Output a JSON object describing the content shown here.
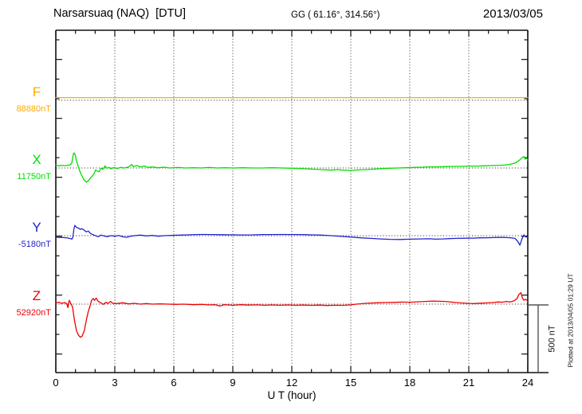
{
  "header": {
    "title": "Narsarsuaq (NAQ)  [DTU]",
    "geo_coords": "GG ( 61.16°, 314.56°)",
    "date": "2013/03/05"
  },
  "axis": {
    "x_label": "U T (hour)",
    "x_ticks": [
      "0",
      "3",
      "6",
      "9",
      "12",
      "15",
      "18",
      "21",
      "24"
    ],
    "x_tick_hours": [
      0,
      3,
      6,
      9,
      12,
      15,
      18,
      21,
      24
    ],
    "grid_hours": [
      3,
      6,
      9,
      12,
      15,
      18,
      21
    ],
    "x_range_hours": [
      0,
      24
    ]
  },
  "scalebar": {
    "label": "500 nT",
    "nT": 500
  },
  "watermark": {
    "plotted_at": "Plotted at 2013/04/05 01:29 UT"
  },
  "channels": [
    {
      "id": "F",
      "label": "F",
      "value_label": "88880nT",
      "baseline_nT": 88880,
      "color": "#FFAA00"
    },
    {
      "id": "X",
      "label": "X",
      "value_label": "11750nT",
      "baseline_nT": 11750,
      "color": "#00DD00"
    },
    {
      "id": "Y",
      "label": "Y",
      "value_label": "-5180nT",
      "baseline_nT": -5180,
      "color": "#2222CC"
    },
    {
      "id": "Z",
      "label": "Z",
      "value_label": "52920nT",
      "baseline_nT": 52920,
      "color": "#EE0000"
    }
  ],
  "chart_data": {
    "type": "line",
    "title": "Narsarsuaq (NAQ) [DTU] magnetogram, 2013/03/05",
    "xlabel": "U T (hour)",
    "x_unit": "hour",
    "xlim": [
      0,
      24
    ],
    "x_tick_step": 3,
    "grid": "dotted vertical lines every 3 h; dotted horizontal baseline per channel",
    "legend_position": "left baseline labels",
    "scale_bar_nT": 500,
    "series": [
      {
        "name": "F",
        "baseline_nT": 88880,
        "color": "#FFAA00",
        "offsets_nT": [
          [
            0,
            20
          ],
          [
            24,
            20
          ]
        ]
      },
      {
        "name": "X",
        "baseline_nT": 11750,
        "color": "#00DD00",
        "offsets_nT": [
          [
            0,
            22
          ],
          [
            0.15,
            16
          ],
          [
            0.3,
            20
          ],
          [
            0.45,
            17
          ],
          [
            0.6,
            20
          ],
          [
            0.75,
            24
          ],
          [
            0.82,
            40
          ],
          [
            0.88,
            95
          ],
          [
            0.92,
            112
          ],
          [
            0.98,
            100
          ],
          [
            1.05,
            55
          ],
          [
            1.12,
            20
          ],
          [
            1.2,
            -15
          ],
          [
            1.3,
            -50
          ],
          [
            1.42,
            -85
          ],
          [
            1.55,
            -105
          ],
          [
            1.65,
            -95
          ],
          [
            1.75,
            -75
          ],
          [
            1.85,
            -60
          ],
          [
            1.95,
            -40
          ],
          [
            2.02,
            -15
          ],
          [
            2.1,
            -22
          ],
          [
            2.2,
            -28
          ],
          [
            2.3,
            -2
          ],
          [
            2.4,
            -10
          ],
          [
            2.5,
            15
          ],
          [
            2.6,
            -2
          ],
          [
            2.7,
            4
          ],
          [
            2.8,
            -6
          ],
          [
            2.95,
            4
          ],
          [
            3.1,
            -4
          ],
          [
            3.3,
            4
          ],
          [
            3.5,
            0
          ],
          [
            3.7,
            8
          ],
          [
            3.85,
            26
          ],
          [
            3.95,
            10
          ],
          [
            4.1,
            18
          ],
          [
            4.3,
            8
          ],
          [
            4.5,
            14
          ],
          [
            4.7,
            4
          ],
          [
            4.9,
            8
          ],
          [
            5.2,
            2
          ],
          [
            5.5,
            6
          ],
          [
            5.8,
            0
          ],
          [
            6.2,
            4
          ],
          [
            6.6,
            0
          ],
          [
            7,
            2
          ],
          [
            7.4,
            0
          ],
          [
            7.8,
            4
          ],
          [
            8.2,
            0
          ],
          [
            8.6,
            2
          ],
          [
            9,
            0
          ],
          [
            9.5,
            2
          ],
          [
            10,
            0
          ],
          [
            10.5,
            0
          ],
          [
            11,
            2
          ],
          [
            11.5,
            0
          ],
          [
            12,
            -2
          ],
          [
            12.5,
            -4
          ],
          [
            13,
            -8
          ],
          [
            13.5,
            -12
          ],
          [
            14,
            -16
          ],
          [
            14.3,
            -12
          ],
          [
            14.6,
            -16
          ],
          [
            15,
            -18
          ],
          [
            15.4,
            -14
          ],
          [
            15.8,
            -12
          ],
          [
            16.2,
            -8
          ],
          [
            16.6,
            -4
          ],
          [
            17,
            -2
          ],
          [
            17.4,
            0
          ],
          [
            17.8,
            2
          ],
          [
            18.2,
            4
          ],
          [
            18.6,
            6
          ],
          [
            19,
            8
          ],
          [
            19.4,
            8
          ],
          [
            19.8,
            10
          ],
          [
            20.2,
            12
          ],
          [
            20.6,
            12
          ],
          [
            21,
            14
          ],
          [
            21.4,
            14
          ],
          [
            21.8,
            16
          ],
          [
            22.2,
            18
          ],
          [
            22.6,
            20
          ],
          [
            23,
            24
          ],
          [
            23.2,
            30
          ],
          [
            23.4,
            40
          ],
          [
            23.55,
            55
          ],
          [
            23.7,
            75
          ],
          [
            23.8,
            85
          ],
          [
            23.87,
            65
          ],
          [
            23.93,
            75
          ],
          [
            24,
            58
          ]
        ]
      },
      {
        "name": "Y",
        "baseline_nT": -5180,
        "color": "#2222CC",
        "offsets_nT": [
          [
            0,
            -12
          ],
          [
            0.2,
            -13
          ],
          [
            0.4,
            -14
          ],
          [
            0.6,
            -17
          ],
          [
            0.75,
            -22
          ],
          [
            0.82,
            -26
          ],
          [
            0.87,
            -10
          ],
          [
            0.92,
            50
          ],
          [
            0.97,
            76
          ],
          [
            1.05,
            62
          ],
          [
            1.15,
            56
          ],
          [
            1.25,
            46
          ],
          [
            1.32,
            52
          ],
          [
            1.45,
            40
          ],
          [
            1.55,
            28
          ],
          [
            1.65,
            34
          ],
          [
            1.75,
            18
          ],
          [
            1.85,
            10
          ],
          [
            1.95,
            4
          ],
          [
            2.05,
            -2
          ],
          [
            2.15,
            -8
          ],
          [
            2.3,
            4
          ],
          [
            2.45,
            -2
          ],
          [
            2.6,
            -8
          ],
          [
            2.8,
            0
          ],
          [
            3,
            -4
          ],
          [
            3.2,
            2
          ],
          [
            3.4,
            -8
          ],
          [
            3.6,
            -12
          ],
          [
            3.8,
            -4
          ],
          [
            4,
            0
          ],
          [
            4.3,
            4
          ],
          [
            4.6,
            -2
          ],
          [
            4.9,
            2
          ],
          [
            5.2,
            -4
          ],
          [
            5.5,
            0
          ],
          [
            5.9,
            2
          ],
          [
            6.3,
            4
          ],
          [
            6.7,
            6
          ],
          [
            7.1,
            8
          ],
          [
            7.5,
            9
          ],
          [
            8,
            8
          ],
          [
            8.5,
            7
          ],
          [
            9,
            6
          ],
          [
            9.5,
            5
          ],
          [
            10,
            6
          ],
          [
            10.5,
            8
          ],
          [
            11,
            8
          ],
          [
            11.5,
            9
          ],
          [
            12,
            8
          ],
          [
            12.5,
            8
          ],
          [
            13,
            6
          ],
          [
            13.5,
            4
          ],
          [
            14,
            0
          ],
          [
            14.5,
            -5
          ],
          [
            15,
            -10
          ],
          [
            15.5,
            -16
          ],
          [
            16,
            -20
          ],
          [
            16.5,
            -24
          ],
          [
            17,
            -27
          ],
          [
            17.5,
            -28
          ],
          [
            18,
            -26
          ],
          [
            18.5,
            -24
          ],
          [
            19,
            -23
          ],
          [
            19.3,
            -26
          ],
          [
            19.7,
            -24
          ],
          [
            20,
            -22
          ],
          [
            20.4,
            -20
          ],
          [
            20.8,
            -19
          ],
          [
            21.2,
            -18
          ],
          [
            21.6,
            -16
          ],
          [
            22,
            -15
          ],
          [
            22.4,
            -13
          ],
          [
            22.8,
            -13
          ],
          [
            23.1,
            -15
          ],
          [
            23.35,
            -20
          ],
          [
            23.5,
            -45
          ],
          [
            23.6,
            -70
          ],
          [
            23.7,
            -25
          ],
          [
            23.8,
            6
          ],
          [
            23.9,
            -10
          ],
          [
            24,
            -8
          ]
        ]
      },
      {
        "name": "Z",
        "baseline_nT": 52920,
        "color": "#EE0000",
        "offsets_nT": [
          [
            0,
            8
          ],
          [
            0.15,
            14
          ],
          [
            0.3,
            6
          ],
          [
            0.45,
            12
          ],
          [
            0.55,
            4
          ],
          [
            0.62,
            -26
          ],
          [
            0.68,
            28
          ],
          [
            0.75,
            8
          ],
          [
            0.85,
            -20
          ],
          [
            0.95,
            -120
          ],
          [
            1.05,
            -195
          ],
          [
            1.15,
            -230
          ],
          [
            1.25,
            -245
          ],
          [
            1.33,
            -238
          ],
          [
            1.45,
            -195
          ],
          [
            1.55,
            -120
          ],
          [
            1.65,
            -55
          ],
          [
            1.75,
            -8
          ],
          [
            1.82,
            28
          ],
          [
            1.9,
            42
          ],
          [
            1.97,
            28
          ],
          [
            2.05,
            45
          ],
          [
            2.15,
            22
          ],
          [
            2.3,
            8
          ],
          [
            2.42,
            -2
          ],
          [
            2.55,
            14
          ],
          [
            2.65,
            4
          ],
          [
            2.78,
            20
          ],
          [
            2.9,
            6
          ],
          [
            3.1,
            4
          ],
          [
            3.4,
            10
          ],
          [
            3.7,
            2
          ],
          [
            4,
            6
          ],
          [
            4.3,
            0
          ],
          [
            4.6,
            4
          ],
          [
            4.9,
            0
          ],
          [
            5.3,
            2
          ],
          [
            5.7,
            0
          ],
          [
            6.1,
            -2
          ],
          [
            6.5,
            0
          ],
          [
            7,
            -4
          ],
          [
            7.4,
            -2
          ],
          [
            7.8,
            -6
          ],
          [
            8.1,
            -4
          ],
          [
            8.35,
            -14
          ],
          [
            8.55,
            -4
          ],
          [
            9,
            -8
          ],
          [
            9.4,
            -4
          ],
          [
            9.8,
            -7
          ],
          [
            10.2,
            -5
          ],
          [
            10.6,
            -8
          ],
          [
            11,
            -6
          ],
          [
            11.4,
            -8
          ],
          [
            11.8,
            -6
          ],
          [
            12.2,
            -8
          ],
          [
            12.6,
            -7
          ],
          [
            13,
            -9
          ],
          [
            13.4,
            -7
          ],
          [
            13.8,
            -10
          ],
          [
            14.2,
            -8
          ],
          [
            14.6,
            -9
          ],
          [
            15,
            -5
          ],
          [
            15.3,
            0
          ],
          [
            15.7,
            5
          ],
          [
            16,
            8
          ],
          [
            16.4,
            10
          ],
          [
            16.8,
            12
          ],
          [
            17.2,
            13
          ],
          [
            17.6,
            15
          ],
          [
            18,
            14
          ],
          [
            18.4,
            17
          ],
          [
            18.8,
            20
          ],
          [
            19.2,
            23
          ],
          [
            19.5,
            21
          ],
          [
            19.8,
            20
          ],
          [
            20.1,
            15
          ],
          [
            20.4,
            11
          ],
          [
            20.7,
            8
          ],
          [
            21,
            5
          ],
          [
            21.3,
            4
          ],
          [
            21.6,
            7
          ],
          [
            21.9,
            9
          ],
          [
            22.2,
            11
          ],
          [
            22.5,
            16
          ],
          [
            22.7,
            14
          ],
          [
            22.9,
            20
          ],
          [
            23.1,
            16
          ],
          [
            23.3,
            24
          ],
          [
            23.45,
            40
          ],
          [
            23.55,
            72
          ],
          [
            23.65,
            85
          ],
          [
            23.73,
            45
          ],
          [
            23.8,
            28
          ],
          [
            23.88,
            36
          ],
          [
            23.95,
            30
          ],
          [
            24,
            20
          ]
        ]
      }
    ]
  }
}
